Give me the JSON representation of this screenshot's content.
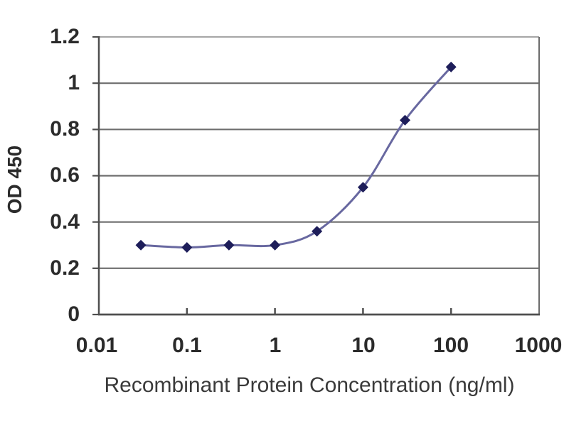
{
  "chart_data": {
    "type": "line",
    "title": "",
    "xlabel": "Recombinant Protein Concentration (ng/ml)",
    "ylabel": "OD 450",
    "x_scale": "log",
    "xlim": [
      0.01,
      1000
    ],
    "ylim": [
      0,
      1.2
    ],
    "x": [
      0.03,
      0.1,
      0.3,
      1,
      3,
      10,
      30,
      100
    ],
    "y": [
      0.3,
      0.29,
      0.3,
      0.3,
      0.36,
      0.55,
      0.84,
      1.07
    ],
    "xticks": [
      "0.01",
      "0.1",
      "1",
      "10",
      "100",
      "1000"
    ],
    "xtick_values": [
      0.01,
      0.1,
      1,
      10,
      100,
      1000
    ],
    "yticks": [
      "1.2",
      "1",
      "0.8",
      "0.6",
      "0.4",
      "0.2",
      "0"
    ],
    "ytick_values": [
      1.2,
      1,
      0.8,
      0.6,
      0.4,
      0.2,
      0
    ],
    "grid": "horizontal",
    "legend": "none",
    "marker": "diamond",
    "line_smooth": true,
    "colors": {
      "line": "#6868a0",
      "marker": "#1e1e5a",
      "gridline": "#6e6e6e",
      "plot_border_top": "#a8a8a8",
      "axis": "#4f4f4f",
      "tick_label": "#2b2b2b",
      "axis_title": "#3a3a3a",
      "background": "#ffffff"
    }
  }
}
